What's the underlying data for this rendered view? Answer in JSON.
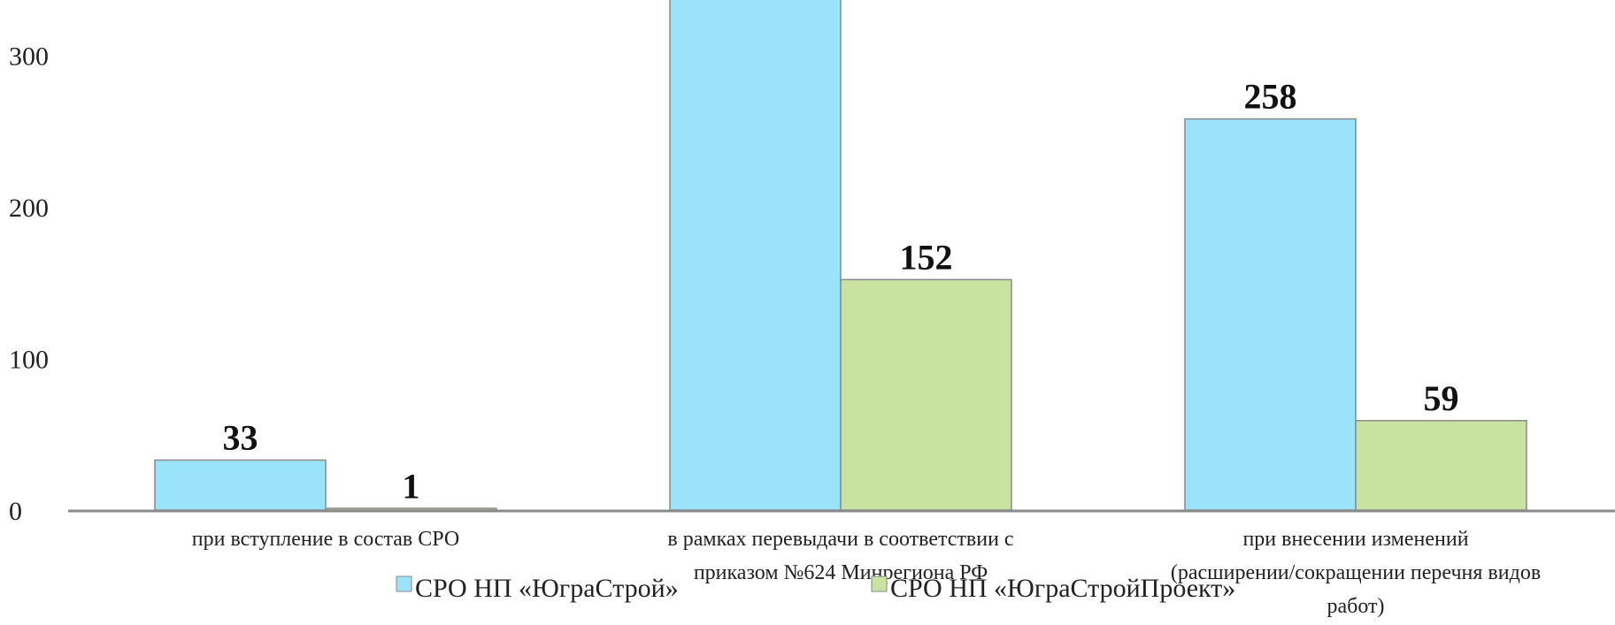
{
  "chart_data": {
    "type": "bar",
    "categories": [
      "при вступление в состав СРО",
      "в рамках перевыдачи в соответствии с приказом №624 Минрегиона РФ",
      "при внесении изменений (расширении/сокращении перечня видов работ)"
    ],
    "category_lines": [
      [
        "при вступление в состав СРО"
      ],
      [
        "в рамках перевыдачи в соответствии с",
        "приказом №624 Минрегиона РФ"
      ],
      [
        "при внесении изменений",
        "(расширении/сокращении перечня видов",
        "работ)"
      ]
    ],
    "series": [
      {
        "name": "СРО НП «ЮграСтрой»",
        "values": [
          33,
          370,
          258
        ],
        "value_labels": [
          "33",
          "",
          "258"
        ],
        "color": "#9be3fb"
      },
      {
        "name": "СРО НП «ЮграСтройПроект»",
        "values": [
          1,
          152,
          59
        ],
        "value_labels": [
          "1",
          "152",
          "59"
        ],
        "color": "#c8e3a0"
      }
    ],
    "yticks": [
      0,
      100,
      200,
      300
    ],
    "ylim": [
      0,
      330
    ],
    "legend": "bottom",
    "grid": false
  }
}
